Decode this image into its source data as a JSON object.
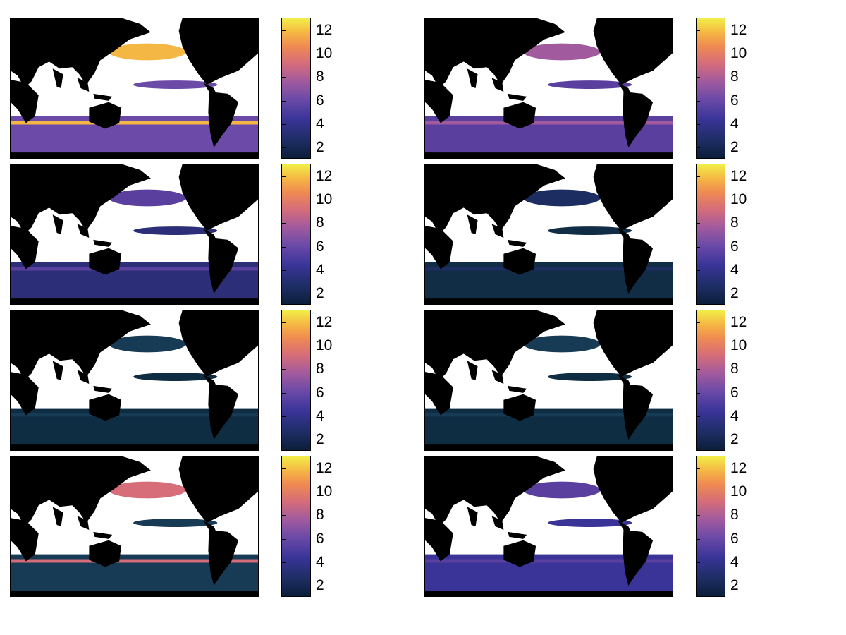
{
  "colorbar": {
    "ticks": [
      "2",
      "4",
      "6",
      "8",
      "10",
      "12"
    ],
    "colors": [
      "#0b1e3a",
      "#3a3499",
      "#a25a9e",
      "#f08a52",
      "#f2ee48"
    ]
  },
  "map": {
    "land_color": "#000000",
    "masked_ocean_color": "#ffffff",
    "panels": [
      {
        "id": "r1c1",
        "dominant": "#6b4aa8",
        "highlight": "#f5b743"
      },
      {
        "id": "r1c2",
        "dominant": "#5a3f9e",
        "highlight": "#a25a9e"
      },
      {
        "id": "r2c1",
        "dominant": "#2c2f78",
        "highlight": "#5a3f9e"
      },
      {
        "id": "r2c2",
        "dominant": "#102d45",
        "highlight": "#1c2d62"
      },
      {
        "id": "r3c1",
        "dominant": "#0f2d42",
        "highlight": "#173a55"
      },
      {
        "id": "r3c2",
        "dominant": "#0f2d42",
        "highlight": "#173a55"
      },
      {
        "id": "r4c1",
        "dominant": "#173a55",
        "highlight": "#d66d79"
      },
      {
        "id": "r4c2",
        "dominant": "#3a3499",
        "highlight": "#5a3f9e"
      }
    ]
  }
}
